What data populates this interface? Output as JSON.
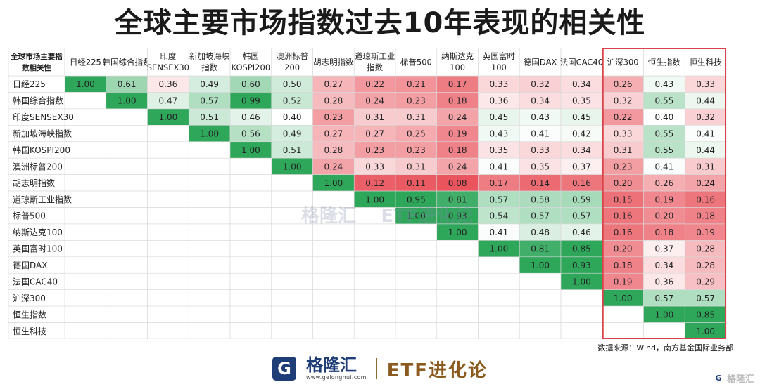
{
  "title": "全球主要市场指数过去10年表现的相关性",
  "source": "数据来源：Wind，南方基金国际业务部",
  "brand": {
    "logo_glyph": "G",
    "name": "格隆汇",
    "url": "www.gelonghui.com",
    "column": "ETF进化论"
  },
  "watermark": {
    "name": "格隆汇",
    "column": "ETF进化论"
  },
  "corner_watermark": "格隆汇",
  "colors": {
    "high_green": "#2fa75a",
    "low_red": "#e9545d",
    "neutral": "#ffffff",
    "highlight_border": "#d9444b"
  },
  "chart_data": {
    "type": "heatmap",
    "corner_label": [
      "全球市场主要指",
      "数相关性"
    ],
    "col_labels": [
      [
        "日经225"
      ],
      [
        "韩国综合指数"
      ],
      [
        "印度",
        "SENSEX30"
      ],
      [
        "新加坡海峡",
        "指数"
      ],
      [
        "韩国",
        "KOSPI200"
      ],
      [
        "澳洲标普",
        "200"
      ],
      [
        "胡志明指数"
      ],
      [
        "道琼斯工业",
        "指数"
      ],
      [
        "标普500"
      ],
      [
        "纳斯达克",
        "100"
      ],
      [
        "英国富时",
        "100"
      ],
      [
        "德国DAX"
      ],
      [
        "法国CAC40"
      ],
      [
        "沪深300"
      ],
      [
        "恒生指数"
      ],
      [
        "恒生科技"
      ]
    ],
    "row_labels": [
      "日经225",
      "韩国综合指数",
      "印度SENSEX30",
      "新加坡海峡指数",
      "韩国KOSPI200",
      "澳洲标普200",
      "胡志明指数",
      "道琼斯工业指数",
      "标普500",
      "纳斯达克100",
      "英国富时100",
      "德国DAX",
      "法国CAC40",
      "沪深300",
      "恒生指数",
      "恒生科技"
    ],
    "values": [
      [
        "1.00",
        "0.61",
        "0.36",
        "0.49",
        "0.60",
        "0.50",
        "0.27",
        "0.22",
        "0.21",
        "0.17",
        "0.33",
        "0.32",
        "0.34",
        "0.26",
        "0.43",
        "0.33"
      ],
      [
        null,
        "1.00",
        "0.47",
        "0.57",
        "0.99",
        "0.52",
        "0.28",
        "0.24",
        "0.23",
        "0.18",
        "0.36",
        "0.34",
        "0.35",
        "0.32",
        "0.55",
        "0.44"
      ],
      [
        null,
        null,
        "1.00",
        "0.51",
        "0.46",
        "0.40",
        "0.23",
        "0.31",
        "0.31",
        "0.24",
        "0.45",
        "0.43",
        "0.45",
        "0.22",
        "0.40",
        "0.32"
      ],
      [
        null,
        null,
        null,
        "1.00",
        "0.56",
        "0.49",
        "0.27",
        "0.27",
        "0.25",
        "0.19",
        "0.43",
        "0.41",
        "0.42",
        "0.33",
        "0.55",
        "0.41"
      ],
      [
        null,
        null,
        null,
        null,
        "1.00",
        "0.51",
        "0.28",
        "0.23",
        "0.23",
        "0.18",
        "0.35",
        "0.33",
        "0.34",
        "0.31",
        "0.55",
        "0.44"
      ],
      [
        null,
        null,
        null,
        null,
        null,
        "1.00",
        "0.24",
        "0.33",
        "0.31",
        "0.24",
        "0.41",
        "0.35",
        "0.37",
        "0.23",
        "0.41",
        "0.31"
      ],
      [
        null,
        null,
        null,
        null,
        null,
        null,
        "1.00",
        "0.12",
        "0.11",
        "0.08",
        "0.17",
        "0.14",
        "0.16",
        "0.20",
        "0.26",
        "0.24"
      ],
      [
        null,
        null,
        null,
        null,
        null,
        null,
        null,
        "1.00",
        "0.95",
        "0.81",
        "0.57",
        "0.58",
        "0.59",
        "0.15",
        "0.19",
        "0.16"
      ],
      [
        null,
        null,
        null,
        null,
        null,
        null,
        null,
        null,
        "1.00",
        "0.93",
        "0.54",
        "0.57",
        "0.57",
        "0.16",
        "0.20",
        "0.18"
      ],
      [
        null,
        null,
        null,
        null,
        null,
        null,
        null,
        null,
        null,
        "1.00",
        "0.41",
        "0.48",
        "0.46",
        "0.16",
        "0.18",
        "0.19"
      ],
      [
        null,
        null,
        null,
        null,
        null,
        null,
        null,
        null,
        null,
        null,
        "1.00",
        "0.81",
        "0.85",
        "0.20",
        "0.37",
        "0.28"
      ],
      [
        null,
        null,
        null,
        null,
        null,
        null,
        null,
        null,
        null,
        null,
        null,
        "1.00",
        "0.93",
        "0.18",
        "0.34",
        "0.28"
      ],
      [
        null,
        null,
        null,
        null,
        null,
        null,
        null,
        null,
        null,
        null,
        null,
        null,
        "1.00",
        "0.19",
        "0.36",
        "0.29"
      ],
      [
        null,
        null,
        null,
        null,
        null,
        null,
        null,
        null,
        null,
        null,
        null,
        null,
        null,
        "1.00",
        "0.57",
        "0.57"
      ],
      [
        null,
        null,
        null,
        null,
        null,
        null,
        null,
        null,
        null,
        null,
        null,
        null,
        null,
        null,
        "1.00",
        "0.85"
      ],
      [
        null,
        null,
        null,
        null,
        null,
        null,
        null,
        null,
        null,
        null,
        null,
        null,
        null,
        null,
        null,
        "1.00"
      ]
    ],
    "highlighted_columns": [
      "沪深300",
      "恒生指数",
      "恒生科技"
    ],
    "grid": true,
    "legend": "none"
  }
}
